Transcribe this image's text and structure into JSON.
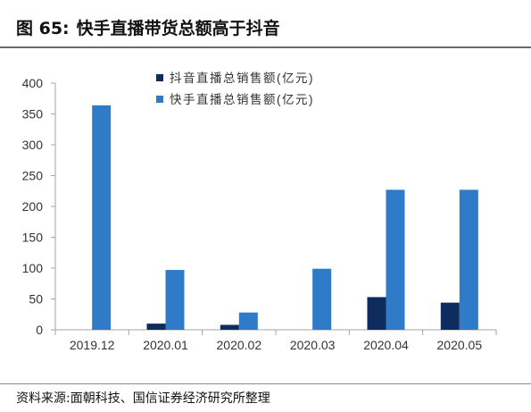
{
  "figure": {
    "number": "图 65:",
    "title": "快手直播带货总额高于抖音",
    "source": "资料来源:面朝科技、国信证券经济研究所整理"
  },
  "colors": {
    "douyin": "#0e2d5e",
    "kuaishou": "#2f7bc8",
    "axis": "#a6a6a6",
    "text": "#333333"
  },
  "chart_data": {
    "type": "bar",
    "categories": [
      "2019.12",
      "2020.01",
      "2020.02",
      "2020.03",
      "2020.04",
      "2020.05"
    ],
    "series": [
      {
        "name": "抖音直播总销售额(亿元)",
        "values": [
          0,
          10,
          8,
          0,
          53,
          44
        ]
      },
      {
        "name": "快手直播总销售额(亿元)",
        "values": [
          364,
          97,
          28,
          99,
          227,
          227
        ]
      }
    ],
    "title": "",
    "xlabel": "",
    "ylabel": "",
    "ylim": [
      0,
      400
    ],
    "yticks": [
      0,
      50,
      100,
      150,
      200,
      250,
      300,
      350,
      400
    ],
    "grid": false,
    "legend": "top-center"
  }
}
